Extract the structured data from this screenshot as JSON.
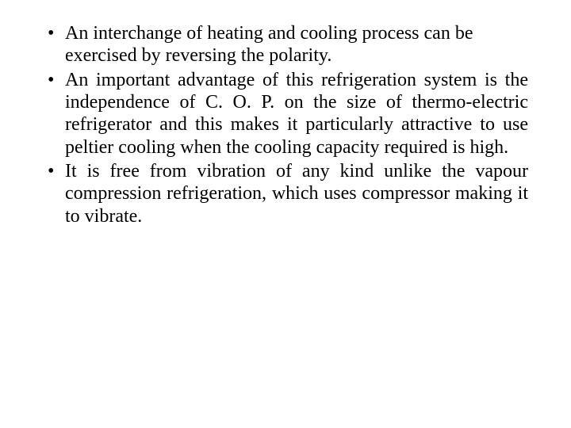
{
  "slide": {
    "background_color": "#ffffff",
    "font_family": "Times New Roman",
    "text_color": "#000000",
    "font_size_pt": 18,
    "bullets": [
      {
        "text": "An interchange of heating and cooling process can be exercised by reversing the polarity.",
        "justify": false
      },
      {
        "text": "An important advantage  of this refrigeration system is the independence of C. O. P. on the size of thermo-electric refrigerator and this makes it particularly attractive to use peltier cooling when the cooling capacity required is high.",
        "justify": true
      },
      {
        "text": "It is free from vibration of any kind unlike the vapour compression refrigeration, which uses compressor making it to vibrate.",
        "justify": true
      }
    ]
  }
}
